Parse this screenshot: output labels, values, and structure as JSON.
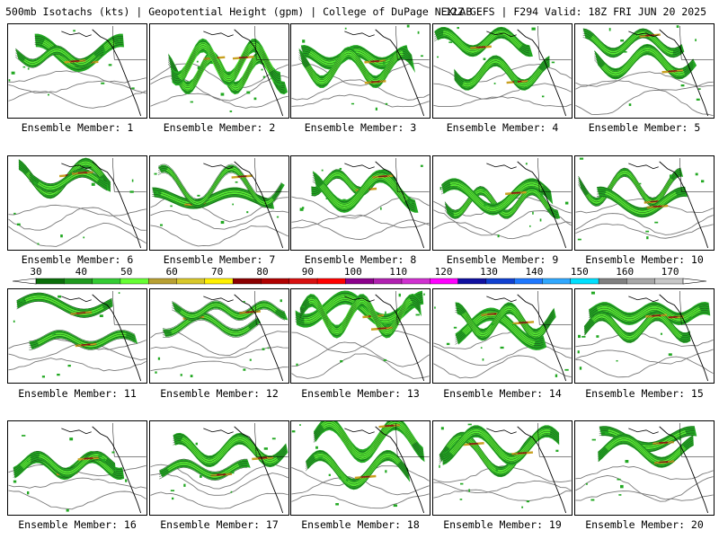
{
  "header": {
    "left": "500mb Isotachs (kts) | Geopotential Height (gpm) | College of DuPage NEXLAB",
    "right": "12Z GEFS | F294 Valid: 18Z FRI JUN 20 2025"
  },
  "caption_prefix": "Ensemble Member: ",
  "members": [
    {
      "label": "Ensemble Member: 1"
    },
    {
      "label": "Ensemble Member: 2"
    },
    {
      "label": "Ensemble Member: 3"
    },
    {
      "label": "Ensemble Member: 4"
    },
    {
      "label": "Ensemble Member: 5"
    },
    {
      "label": "Ensemble Member: 6"
    },
    {
      "label": "Ensemble Member: 7"
    },
    {
      "label": "Ensemble Member: 8"
    },
    {
      "label": "Ensemble Member: 9"
    },
    {
      "label": "Ensemble Member: 10"
    },
    {
      "label": "Ensemble Member: 11"
    },
    {
      "label": "Ensemble Member: 12"
    },
    {
      "label": "Ensemble Member: 13"
    },
    {
      "label": "Ensemble Member: 14"
    },
    {
      "label": "Ensemble Member: 15"
    },
    {
      "label": "Ensemble Member: 16"
    },
    {
      "label": "Ensemble Member: 17"
    },
    {
      "label": "Ensemble Member: 18"
    },
    {
      "label": "Ensemble Member: 19"
    },
    {
      "label": "Ensemble Member: 20"
    }
  ],
  "colorbar": {
    "labels": [
      "30",
      "40",
      "50",
      "60",
      "70",
      "80",
      "90",
      "100",
      "110",
      "120",
      "130",
      "140",
      "150",
      "160",
      "170"
    ],
    "colors": [
      "#0a6e0a",
      "#1e9a1e",
      "#33cc33",
      "#66ff33",
      "#b8a032",
      "#d8c82a",
      "#fff000",
      "#8b0000",
      "#b00000",
      "#d81010",
      "#ff0000",
      "#8b008b",
      "#b020b0",
      "#d030d0",
      "#ff00ff",
      "#1010a0",
      "#1040d0",
      "#1e78ff",
      "#30a8ff",
      "#00e0ff",
      "#808080",
      "#a8a8a8",
      "#c8c8c8"
    ]
  }
}
